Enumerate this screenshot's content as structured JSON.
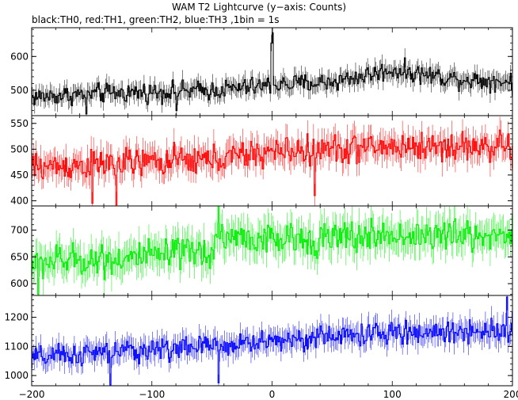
{
  "title": "WAM T2 Lightcurve (y−axis: Counts)",
  "subtitle": "black:TH0, red:TH1, green:TH2, blue:TH3 ,1bin = 1s",
  "chart_data": {
    "type": "line",
    "xlim": [
      -200,
      200
    ],
    "x_ticks": [
      -200,
      -100,
      0,
      100,
      200
    ],
    "x_tick_labels": [
      "−200",
      "−100",
      "0",
      "100",
      "200"
    ],
    "x_step": 1,
    "grid": false,
    "panels": [
      {
        "name": "TH0",
        "color": "#000000",
        "ylim": [
          425,
          685
        ],
        "y_ticks": [
          500,
          600
        ],
        "y_tick_labels": [
          "500",
          "600"
        ],
        "trend": [
          [
            -200,
            480
          ],
          [
            -150,
            490
          ],
          [
            -100,
            495
          ],
          [
            -50,
            500
          ],
          [
            0,
            515
          ],
          [
            50,
            525
          ],
          [
            100,
            560
          ],
          [
            150,
            535
          ],
          [
            200,
            525
          ]
        ],
        "noise": 28,
        "spikes": [
          [
            0,
            670
          ],
          [
            -1,
            640
          ],
          [
            -155,
            430
          ],
          [
            -80,
            440
          ]
        ]
      },
      {
        "name": "TH1",
        "color": "#ff0000",
        "ylim": [
          390,
          565
        ],
        "y_ticks": [
          400,
          450,
          500,
          550
        ],
        "y_tick_labels": [
          "400",
          "450",
          "500",
          "550"
        ],
        "trend": [
          [
            -200,
            465
          ],
          [
            -150,
            470
          ],
          [
            -100,
            475
          ],
          [
            -50,
            480
          ],
          [
            0,
            495
          ],
          [
            50,
            500
          ],
          [
            100,
            505
          ],
          [
            150,
            505
          ],
          [
            200,
            505
          ]
        ],
        "noise": 28,
        "spikes": [
          [
            -150,
            395
          ],
          [
            -130,
            392
          ],
          [
            35,
            410
          ]
        ]
      },
      {
        "name": "TH2",
        "color": "#00ee00",
        "ylim": [
          578,
          745
        ],
        "y_ticks": [
          600,
          650,
          700
        ],
        "y_tick_labels": [
          "600",
          "650",
          "700"
        ],
        "trend": [
          [
            -200,
            640
          ],
          [
            -150,
            645
          ],
          [
            -100,
            650
          ],
          [
            -50,
            660
          ],
          [
            -45,
            690
          ],
          [
            0,
            680
          ],
          [
            50,
            685
          ],
          [
            100,
            690
          ],
          [
            150,
            690
          ],
          [
            200,
            690
          ]
        ],
        "noise": 30,
        "spikes": [
          [
            -195,
            580
          ],
          [
            -45,
            745
          ]
        ]
      },
      {
        "name": "TH3",
        "color": "#0000ff",
        "ylim": [
          965,
          1275
        ],
        "y_ticks": [
          1000,
          1100,
          1200
        ],
        "y_tick_labels": [
          "1000",
          "1100",
          "1200"
        ],
        "trend": [
          [
            -200,
            1060
          ],
          [
            -150,
            1075
          ],
          [
            -100,
            1090
          ],
          [
            -50,
            1100
          ],
          [
            0,
            1120
          ],
          [
            50,
            1135
          ],
          [
            100,
            1145
          ],
          [
            150,
            1150
          ],
          [
            200,
            1160
          ]
        ],
        "noise": 38,
        "spikes": [
          [
            -135,
            968
          ],
          [
            -45,
            975
          ],
          [
            195,
            1270
          ]
        ]
      }
    ]
  }
}
